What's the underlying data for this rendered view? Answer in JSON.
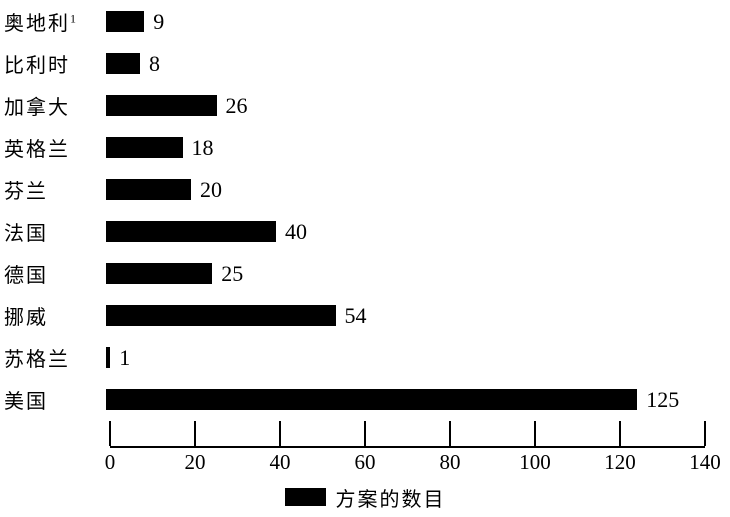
{
  "chart_data": {
    "type": "bar",
    "orientation": "horizontal",
    "title": "",
    "xlabel": "",
    "ylabel": "",
    "xlim": [
      0,
      140
    ],
    "xticks": [
      "0",
      "20",
      "40",
      "60",
      "80",
      "100",
      "120",
      "140"
    ],
    "grid": false,
    "bar_color": "#000000",
    "background_color": "#ffffff",
    "legend_position": "bottom-center",
    "legend_label": "方案的数目",
    "rows": [
      {
        "label": "奥地利",
        "sup": "1",
        "value": 9
      },
      {
        "label": "比利时",
        "sup": "",
        "value": 8
      },
      {
        "label": "加拿大",
        "sup": "",
        "value": 26
      },
      {
        "label": "英格兰",
        "sup": "",
        "value": 18
      },
      {
        "label": "芬兰",
        "sup": "",
        "value": 20
      },
      {
        "label": "法国",
        "sup": "",
        "value": 40
      },
      {
        "label": "德国",
        "sup": "",
        "value": 25
      },
      {
        "label": "挪威",
        "sup": "",
        "value": 54
      },
      {
        "label": "苏格兰",
        "sup": "",
        "value": 1
      },
      {
        "label": "美国",
        "sup": "",
        "value": 125
      }
    ]
  }
}
